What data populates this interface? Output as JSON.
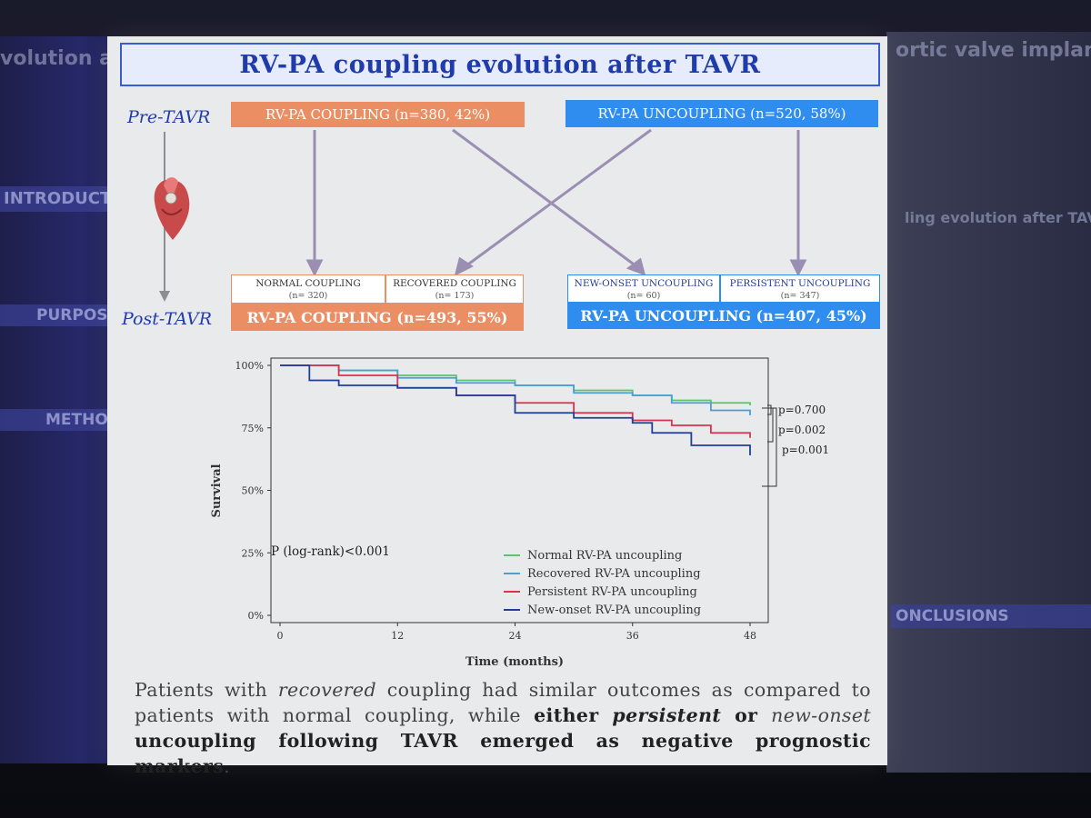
{
  "title": "RV-PA coupling evolution after TAVR",
  "timeline": {
    "pre": "Pre-TAVR",
    "post": "Post-TAVR"
  },
  "flow": {
    "pre_coupling": "RV-PA COUPLING (n=380, 42%)",
    "pre_uncoupling": "RV-PA UNCOUPLING (n=520, 58%)",
    "normal_coupling": {
      "label": "NORMAL COUPLING",
      "n": "(n= 320)"
    },
    "recovered_coupling": {
      "label": "RECOVERED COUPLING",
      "n": "(n= 173)"
    },
    "newonset_uncoupling": {
      "label": "NEW-ONSET UNCOUPLING",
      "n": "(n= 60)"
    },
    "persistent_uncoupling": {
      "label": "PERSISTENT UNCOUPLING",
      "n": "(n= 347)"
    },
    "post_coupling": "RV-PA COUPLING (n=493, 55%)",
    "post_uncoupling": "RV-PA UNCOUPLING (n=407, 45%)"
  },
  "chart_data": {
    "type": "line",
    "title": "",
    "xlabel": "Time (months)",
    "ylabel": "Survival",
    "xlim": [
      0,
      48
    ],
    "ylim": [
      0,
      100
    ],
    "x_ticks": [
      "0",
      "12",
      "24",
      "36",
      "48"
    ],
    "y_ticks": [
      "0%",
      "25%",
      "50%",
      "75%",
      "100%"
    ],
    "series": [
      {
        "name": "Normal RV-PA uncoupling",
        "color": "#5cc46a",
        "x": [
          0,
          6,
          12,
          18,
          24,
          30,
          36,
          40,
          44,
          48
        ],
        "y": [
          100,
          98,
          96,
          94,
          92,
          90,
          88,
          86,
          85,
          84
        ]
      },
      {
        "name": "Recovered RV-PA uncoupling",
        "color": "#4a9fd8",
        "x": [
          0,
          6,
          12,
          18,
          24,
          30,
          36,
          40,
          44,
          48
        ],
        "y": [
          100,
          98,
          95,
          93,
          92,
          89,
          88,
          85,
          82,
          80
        ]
      },
      {
        "name": "Persistent RV-PA uncoupling",
        "color": "#d8344e",
        "x": [
          0,
          6,
          12,
          18,
          24,
          30,
          36,
          40,
          44,
          48
        ],
        "y": [
          100,
          96,
          91,
          88,
          85,
          81,
          78,
          76,
          73,
          71
        ]
      },
      {
        "name": "New-onset RV-PA uncoupling",
        "color": "#1f3f9c",
        "x": [
          0,
          3,
          6,
          12,
          18,
          24,
          30,
          36,
          38,
          42,
          46,
          48
        ],
        "y": [
          100,
          94,
          92,
          91,
          88,
          81,
          79,
          77,
          73,
          68,
          68,
          64
        ]
      }
    ],
    "annotations": [
      "p=0.700",
      "p=0.002",
      "p=0.001"
    ],
    "logrank": "P (log-rank)<0.001"
  },
  "summary": {
    "s1": "Patients with ",
    "s2": "recovered",
    "s3": " coupling had similar outcomes as compared to patients with normal coupling, while ",
    "s4": "either ",
    "s5": "persistent",
    "s6": " or ",
    "s7": "new-onset",
    "s8": " uncoupling following TAVR emerged as negative prognostic markers",
    "s9": "."
  },
  "background": {
    "left_texts": [
      "INTRODUCT",
      "PURPOS",
      "METHOD"
    ],
    "right_texts": [
      "ortic valve implanta",
      "ling evolution after TAVR",
      "ONCLUSIONS"
    ],
    "top_left_text": "volution and"
  }
}
